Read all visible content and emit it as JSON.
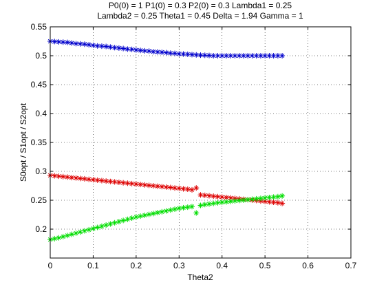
{
  "chart_data": {
    "type": "scatter",
    "title_lines": [
      "P0(0) = 1 P1(0) = 0.3 P2(0) = 0.3 Lambda1 = 0.25",
      "Lambda2 = 0.25 Theta1 = 0.45 Delta = 1.94 Gamma = 1"
    ],
    "xlabel": "Theta2",
    "ylabel": "S0opt / S1opt / S2opt",
    "xlim": [
      0,
      0.7
    ],
    "ylim": [
      0.15,
      0.55
    ],
    "xticks": [
      "0",
      "0.1",
      "0.2",
      "0.3",
      "0.4",
      "0.5",
      "0.6",
      "0.7"
    ],
    "yticks": [
      "0.2",
      "0.25",
      "0.3",
      "0.35",
      "0.4",
      "0.45",
      "0.5",
      "0.55"
    ],
    "grid": true,
    "marker": "*",
    "series": [
      {
        "color": "#0000cc",
        "points": [
          [
            0.0,
            0.525
          ],
          [
            0.01,
            0.5245
          ],
          [
            0.02,
            0.524
          ],
          [
            0.03,
            0.5235
          ],
          [
            0.04,
            0.523
          ],
          [
            0.05,
            0.522
          ],
          [
            0.06,
            0.521
          ],
          [
            0.07,
            0.5205
          ],
          [
            0.08,
            0.52
          ],
          [
            0.09,
            0.519
          ],
          [
            0.1,
            0.518
          ],
          [
            0.11,
            0.517
          ],
          [
            0.12,
            0.5165
          ],
          [
            0.13,
            0.516
          ],
          [
            0.14,
            0.515
          ],
          [
            0.15,
            0.514
          ],
          [
            0.16,
            0.5133
          ],
          [
            0.17,
            0.5125
          ],
          [
            0.18,
            0.5115
          ],
          [
            0.19,
            0.511
          ],
          [
            0.2,
            0.51
          ],
          [
            0.21,
            0.5093
          ],
          [
            0.22,
            0.5085
          ],
          [
            0.23,
            0.508
          ],
          [
            0.24,
            0.507
          ],
          [
            0.25,
            0.5065
          ],
          [
            0.26,
            0.506
          ],
          [
            0.27,
            0.5053
          ],
          [
            0.28,
            0.5045
          ],
          [
            0.29,
            0.504
          ],
          [
            0.3,
            0.5033
          ],
          [
            0.31,
            0.503
          ],
          [
            0.32,
            0.5025
          ],
          [
            0.33,
            0.502
          ],
          [
            0.34,
            0.5015
          ],
          [
            0.35,
            0.501
          ],
          [
            0.36,
            0.5008
          ],
          [
            0.37,
            0.5005
          ],
          [
            0.38,
            0.5
          ],
          [
            0.39,
            0.5
          ],
          [
            0.4,
            0.5
          ],
          [
            0.41,
            0.5
          ],
          [
            0.42,
            0.5
          ],
          [
            0.43,
            0.5
          ],
          [
            0.44,
            0.5
          ],
          [
            0.45,
            0.5
          ],
          [
            0.46,
            0.5
          ],
          [
            0.47,
            0.5
          ],
          [
            0.48,
            0.5
          ],
          [
            0.49,
            0.5
          ],
          [
            0.5,
            0.5
          ],
          [
            0.51,
            0.5
          ],
          [
            0.52,
            0.5
          ],
          [
            0.53,
            0.5
          ],
          [
            0.54,
            0.5
          ]
        ]
      },
      {
        "color": "#dd0000",
        "points": [
          [
            0.0,
            0.293
          ],
          [
            0.01,
            0.2922
          ],
          [
            0.02,
            0.2915
          ],
          [
            0.03,
            0.2908
          ],
          [
            0.04,
            0.29
          ],
          [
            0.05,
            0.2892
          ],
          [
            0.06,
            0.2885
          ],
          [
            0.07,
            0.2877
          ],
          [
            0.08,
            0.287
          ],
          [
            0.09,
            0.2862
          ],
          [
            0.1,
            0.2855
          ],
          [
            0.11,
            0.2847
          ],
          [
            0.12,
            0.284
          ],
          [
            0.13,
            0.2832
          ],
          [
            0.14,
            0.2825
          ],
          [
            0.15,
            0.2817
          ],
          [
            0.16,
            0.281
          ],
          [
            0.17,
            0.2802
          ],
          [
            0.18,
            0.2795
          ],
          [
            0.19,
            0.2787
          ],
          [
            0.2,
            0.278
          ],
          [
            0.21,
            0.2772
          ],
          [
            0.22,
            0.2765
          ],
          [
            0.23,
            0.2757
          ],
          [
            0.24,
            0.275
          ],
          [
            0.25,
            0.2742
          ],
          [
            0.26,
            0.2735
          ],
          [
            0.27,
            0.2727
          ],
          [
            0.28,
            0.272
          ],
          [
            0.29,
            0.2712
          ],
          [
            0.3,
            0.2705
          ],
          [
            0.31,
            0.2697
          ],
          [
            0.32,
            0.269
          ],
          [
            0.33,
            0.268
          ],
          [
            0.34,
            0.2713
          ],
          [
            0.35,
            0.2592
          ],
          [
            0.36,
            0.2585
          ],
          [
            0.37,
            0.2577
          ],
          [
            0.38,
            0.257
          ],
          [
            0.39,
            0.2562
          ],
          [
            0.4,
            0.2555
          ],
          [
            0.41,
            0.2547
          ],
          [
            0.42,
            0.254
          ],
          [
            0.43,
            0.2532
          ],
          [
            0.44,
            0.2525
          ],
          [
            0.45,
            0.2517
          ],
          [
            0.46,
            0.251
          ],
          [
            0.47,
            0.2502
          ],
          [
            0.48,
            0.2495
          ],
          [
            0.49,
            0.2487
          ],
          [
            0.5,
            0.248
          ],
          [
            0.51,
            0.2472
          ],
          [
            0.52,
            0.2465
          ],
          [
            0.53,
            0.2457
          ],
          [
            0.54,
            0.2445
          ]
        ]
      },
      {
        "color": "#00dd00",
        "points": [
          [
            0.0,
            0.182
          ],
          [
            0.01,
            0.1835
          ],
          [
            0.02,
            0.185
          ],
          [
            0.03,
            0.187
          ],
          [
            0.04,
            0.189
          ],
          [
            0.05,
            0.191
          ],
          [
            0.06,
            0.193
          ],
          [
            0.07,
            0.195
          ],
          [
            0.08,
            0.197
          ],
          [
            0.09,
            0.199
          ],
          [
            0.1,
            0.201
          ],
          [
            0.11,
            0.203
          ],
          [
            0.12,
            0.205
          ],
          [
            0.13,
            0.207
          ],
          [
            0.14,
            0.209
          ],
          [
            0.15,
            0.211
          ],
          [
            0.16,
            0.213
          ],
          [
            0.17,
            0.215
          ],
          [
            0.18,
            0.217
          ],
          [
            0.19,
            0.219
          ],
          [
            0.2,
            0.221
          ],
          [
            0.21,
            0.2225
          ],
          [
            0.22,
            0.224
          ],
          [
            0.23,
            0.2255
          ],
          [
            0.24,
            0.227
          ],
          [
            0.25,
            0.2285
          ],
          [
            0.26,
            0.23
          ],
          [
            0.27,
            0.2315
          ],
          [
            0.28,
            0.233
          ],
          [
            0.29,
            0.2345
          ],
          [
            0.3,
            0.236
          ],
          [
            0.31,
            0.237
          ],
          [
            0.32,
            0.238
          ],
          [
            0.33,
            0.239
          ],
          [
            0.34,
            0.228
          ],
          [
            0.35,
            0.241
          ],
          [
            0.36,
            0.2425
          ],
          [
            0.37,
            0.2435
          ],
          [
            0.38,
            0.2445
          ],
          [
            0.39,
            0.2455
          ],
          [
            0.4,
            0.2465
          ],
          [
            0.41,
            0.2472
          ],
          [
            0.42,
            0.248
          ],
          [
            0.43,
            0.2488
          ],
          [
            0.44,
            0.2495
          ],
          [
            0.45,
            0.2502
          ],
          [
            0.46,
            0.251
          ],
          [
            0.47,
            0.2518
          ],
          [
            0.48,
            0.2525
          ],
          [
            0.49,
            0.2532
          ],
          [
            0.5,
            0.254
          ],
          [
            0.51,
            0.2548
          ],
          [
            0.52,
            0.2555
          ],
          [
            0.53,
            0.2562
          ],
          [
            0.54,
            0.2575
          ]
        ]
      }
    ]
  }
}
